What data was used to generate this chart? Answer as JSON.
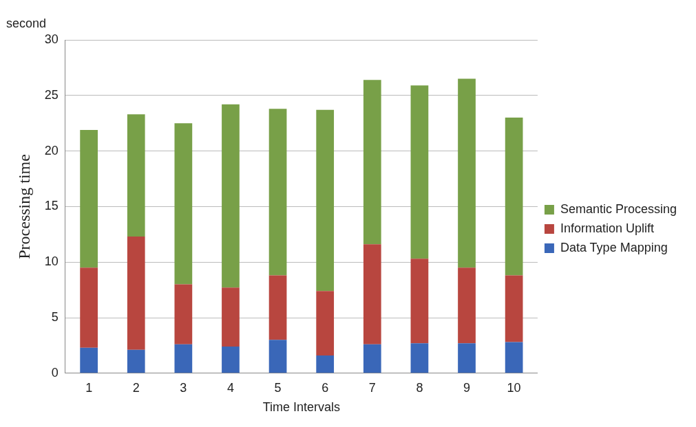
{
  "chart_data": {
    "type": "bar",
    "stacked": true,
    "xlabel": "Time Intervals",
    "ylabel": "Processing time",
    "annotations": [
      "second"
    ],
    "categories": [
      "1",
      "2",
      "3",
      "4",
      "5",
      "6",
      "7",
      "8",
      "9",
      "10"
    ],
    "series": [
      {
        "name": "Data Type Mapping",
        "color": "#3a67b8",
        "values": [
          2.3,
          2.1,
          2.6,
          2.4,
          3.0,
          1.6,
          2.6,
          2.7,
          2.7,
          2.8
        ]
      },
      {
        "name": "Information Uplift",
        "color": "#b8463f",
        "values": [
          7.2,
          10.2,
          5.4,
          5.3,
          5.8,
          5.8,
          9.0,
          7.6,
          6.8,
          6.0
        ]
      },
      {
        "name": "Semantic Processing",
        "color": "#78a048",
        "values": [
          12.4,
          11.0,
          14.5,
          16.5,
          15.0,
          16.3,
          14.8,
          15.6,
          17.0,
          14.2
        ]
      }
    ],
    "ylim": [
      0,
      30
    ],
    "yticks": [
      0,
      5,
      10,
      15,
      20,
      25,
      30
    ],
    "grid": "y",
    "legend": "right"
  }
}
